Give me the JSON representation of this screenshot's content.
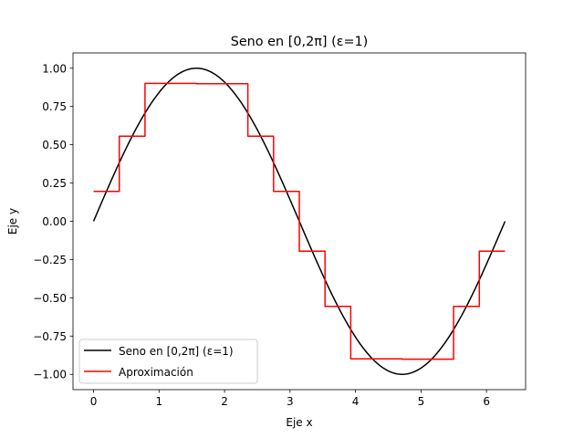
{
  "chart_data": {
    "type": "line",
    "title": "Seno en [0,2π] (ε=1)",
    "xlabel": "Eje x",
    "ylabel": "Eje y",
    "xlim": [
      -0.314,
      6.597
    ],
    "ylim": [
      -1.1,
      1.1
    ],
    "xticks": [
      0,
      1,
      2,
      3,
      4,
      5,
      6
    ],
    "xtick_labels": [
      "0",
      "1",
      "2",
      "3",
      "4",
      "5",
      "6"
    ],
    "yticks": [
      -1.0,
      -0.75,
      -0.5,
      -0.25,
      0.0,
      0.25,
      0.5,
      0.75,
      1.0
    ],
    "ytick_labels": [
      "−1.00",
      "−0.75",
      "−0.50",
      "−0.25",
      "0.00",
      "0.25",
      "0.50",
      "0.75",
      "1.00"
    ],
    "grid": false,
    "legend_position": "lower-left",
    "series": [
      {
        "name": "Seno en [0,2π] (ε=1)",
        "color": "#000000",
        "kind": "function",
        "function": "sin",
        "domain": [
          0,
          6.2832
        ]
      },
      {
        "name": "Aproximación",
        "color": "#ff0000",
        "kind": "step",
        "x_edges": [
          0.0,
          0.3927,
          0.7854,
          1.1781,
          1.5708,
          1.9635,
          2.3562,
          2.7489,
          3.1416,
          3.5343,
          3.927,
          4.3197,
          4.7124,
          5.1051,
          5.4978,
          5.8905,
          6.2832
        ],
        "values": [
          0.195,
          0.556,
          0.901,
          0.901,
          0.899,
          0.899,
          0.556,
          0.195,
          -0.195,
          -0.556,
          -0.899,
          -0.899,
          -0.901,
          -0.901,
          -0.556,
          -0.195
        ]
      }
    ]
  }
}
